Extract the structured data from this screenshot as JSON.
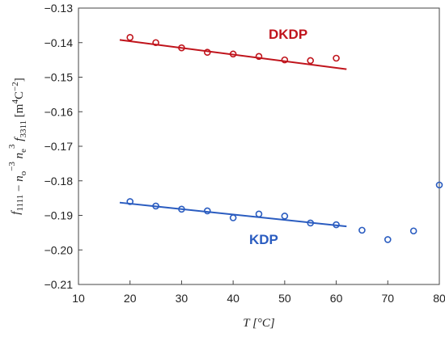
{
  "chart_data": {
    "type": "scatter",
    "xlim": [
      10,
      80
    ],
    "ylim": [
      -0.21,
      -0.13
    ],
    "x_ticks": [
      "10",
      "20",
      "30",
      "40",
      "50",
      "60",
      "70",
      "80"
    ],
    "y_ticks": [
      "-0.13",
      "-0.14",
      "-0.15",
      "-0.16",
      "-0.17",
      "-0.18",
      "-0.19",
      "-0.20",
      "-0.21"
    ],
    "xlabel": "T [°C]",
    "ylabel": "f1111 − no−3 ne3 f3311 [m4C−2]",
    "grid": false,
    "series": [
      {
        "name": "DKDP",
        "color": "#c0141c",
        "x": [
          20,
          25,
          30,
          35,
          40,
          45,
          50,
          55,
          60
        ],
        "y": [
          -0.1385,
          -0.14,
          -0.1415,
          -0.1428,
          -0.1433,
          -0.144,
          -0.145,
          -0.1452,
          -0.1445
        ],
        "fit": {
          "x": [
            18,
            62
          ],
          "y": [
            -0.1392,
            -0.1477
          ]
        }
      },
      {
        "name": "KDP",
        "color": "#2a5cc0",
        "x": [
          20,
          25,
          30,
          35,
          40,
          45,
          50,
          55,
          60,
          65,
          70,
          75,
          80
        ],
        "y": [
          -0.186,
          -0.1873,
          -0.1882,
          -0.1887,
          -0.1907,
          -0.1896,
          -0.1902,
          -0.1922,
          -0.1927,
          -0.1943,
          -0.197,
          -0.1945,
          -0.1812
        ],
        "fit": {
          "x": [
            18,
            62
          ],
          "y": [
            -0.1863,
            -0.1932
          ]
        }
      }
    ]
  }
}
